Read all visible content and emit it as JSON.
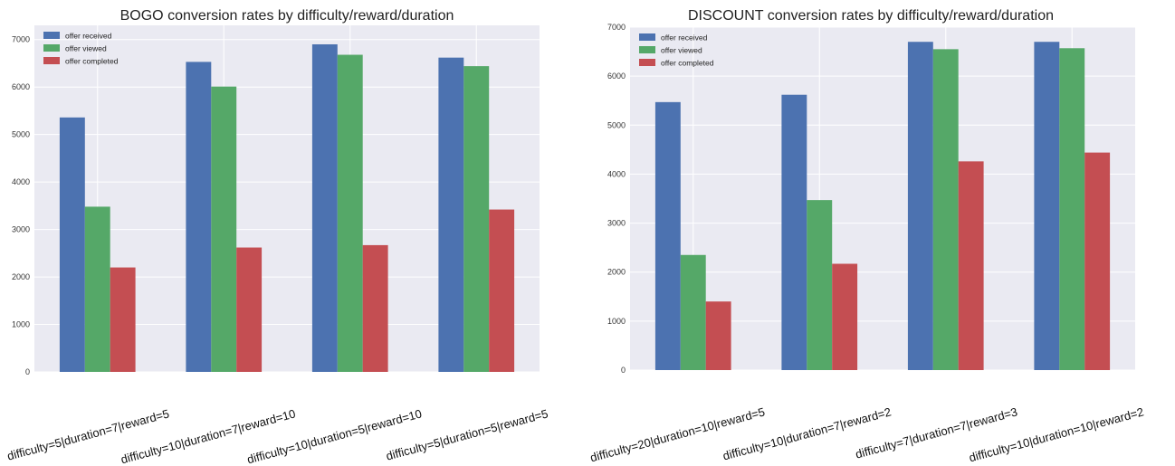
{
  "chart_data": [
    {
      "type": "bar",
      "title": "BOGO conversion rates by difficulty/reward/duration",
      "xlabel": "",
      "ylabel": "",
      "ylim": [
        0,
        7300
      ],
      "yticks": [
        0,
        1000,
        2000,
        3000,
        4000,
        5000,
        6000,
        7000
      ],
      "categories": [
        "difficulty=5|duration=7|reward=5",
        "difficulty=10|duration=7|reward=10",
        "difficulty=10|duration=5|reward=10",
        "difficulty=5|duration=5|reward=5"
      ],
      "series": [
        {
          "name": "offer received",
          "color": "#4c72b0",
          "values": [
            5360,
            6530,
            6900,
            6620
          ]
        },
        {
          "name": "offer viewed",
          "color": "#55a868",
          "values": [
            3480,
            6010,
            6680,
            6440
          ]
        },
        {
          "name": "offer completed",
          "color": "#c44e52",
          "values": [
            2200,
            2620,
            2670,
            3420
          ]
        }
      ],
      "grid": true,
      "legend": "top-left",
      "background": "#eaeaf2"
    },
    {
      "type": "bar",
      "title": "DISCOUNT conversion rates by difficulty/reward/duration",
      "xlabel": "",
      "ylabel": "",
      "ylim": [
        0,
        7000
      ],
      "yticks": [
        0,
        1000,
        2000,
        3000,
        4000,
        5000,
        6000,
        7000
      ],
      "categories": [
        "difficulty=20|duration=10|reward=5",
        "difficulty=10|duration=7|reward=2",
        "difficulty=7|duration=7|reward=3",
        "difficulty=10|duration=10|reward=2"
      ],
      "series": [
        {
          "name": "offer received",
          "color": "#4c72b0",
          "values": [
            5470,
            5620,
            6700,
            6700
          ]
        },
        {
          "name": "offer viewed",
          "color": "#55a868",
          "values": [
            2350,
            3470,
            6550,
            6570
          ]
        },
        {
          "name": "offer completed",
          "color": "#c44e52",
          "values": [
            1400,
            2170,
            4260,
            4440
          ]
        }
      ],
      "grid": true,
      "legend": "top-left",
      "background": "#eaeaf2"
    }
  ]
}
